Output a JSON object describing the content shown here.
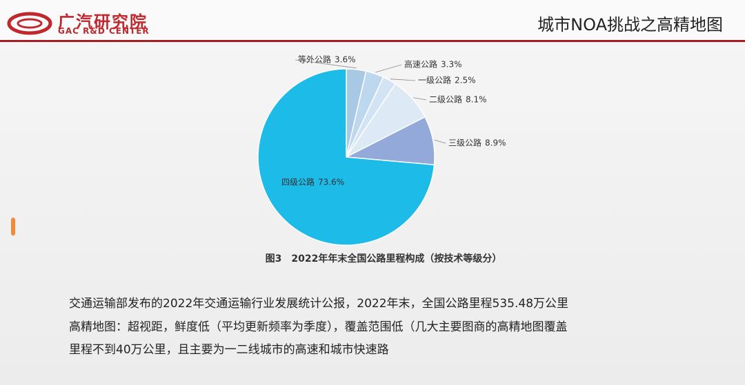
{
  "header": {
    "logo_cn": "广汽研究院",
    "logo_en": "GAC R&D CENTER",
    "title": "城市NOA挑战之高精地图"
  },
  "chart_data": {
    "type": "pie",
    "categories": [
      "等外公路",
      "高速公路",
      "一级公路",
      "二级公路",
      "三级公路",
      "四级公路"
    ],
    "values": [
      3.6,
      3.3,
      2.5,
      8.1,
      8.9,
      73.6
    ],
    "value_labels": [
      "3.6%",
      "3.3%",
      "2.5%",
      "8.1%",
      "8.9%",
      "73.6%"
    ],
    "colors": [
      "#a8c8e4",
      "#bdd7ee",
      "#d2e3f3",
      "#dde9f5",
      "#93a9d9",
      "#1dbbe8"
    ],
    "caption": "图3　2022年年末全国公路里程构成（按技术等级分）"
  },
  "text": {
    "lines": [
      "交通运输部发布的2022年交通运输行业发展统计公报，2022年末，全国公路里程535.48万公里",
      "高精地图：超视距，鲜度低（平均更新频率为季度），覆盖范围低（几大主要图商的高精地图覆盖",
      "里程不到40万公里，且主要为一二线城市的高速和城市快速路"
    ]
  }
}
